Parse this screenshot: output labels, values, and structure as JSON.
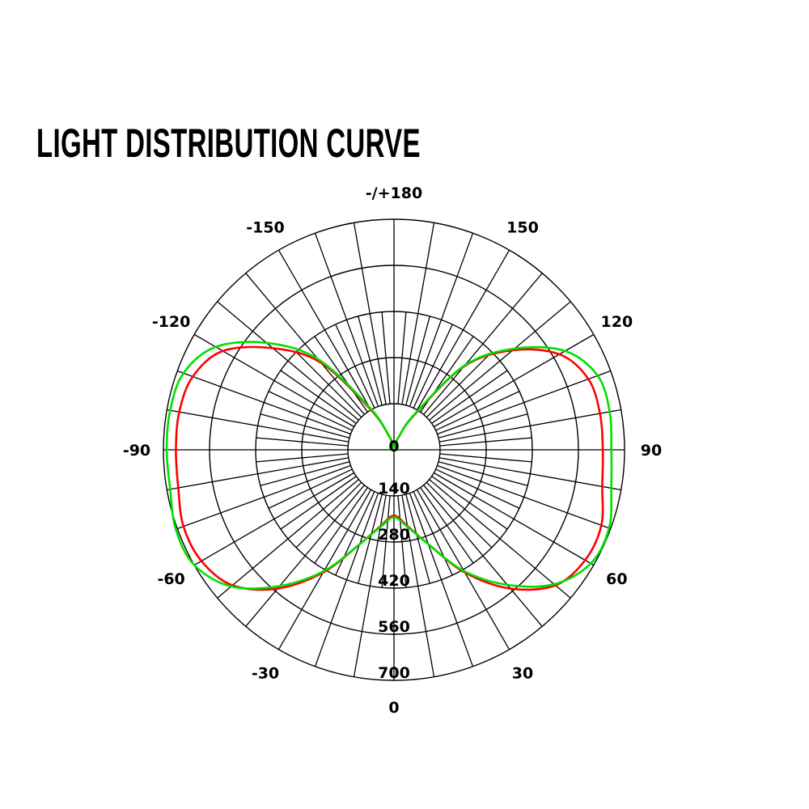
{
  "chart_data": {
    "type": "polar",
    "title": "LIGHT DISTRIBUTION CURVE",
    "angle_zero": "bottom",
    "angle_direction": "positive to the right",
    "angle_labels": [
      "0",
      "30",
      "60",
      "90",
      "120",
      "150",
      "-/+180",
      "-150",
      "-120",
      "-90",
      "-60",
      "-30"
    ],
    "angle_label_values": [
      0,
      30,
      60,
      90,
      120,
      150,
      180,
      -150,
      -120,
      -90,
      -60,
      -30
    ],
    "radial_labels": [
      "0",
      "140",
      "280",
      "420",
      "560",
      "700"
    ],
    "radial_ticks": [
      0,
      140,
      280,
      420,
      560,
      700
    ],
    "rlim": [
      0,
      700
    ],
    "grid": true,
    "colors": {
      "series1": "#ff0000",
      "series2": "#00e000",
      "grid": "#000000"
    },
    "angles": [
      -180,
      -170,
      -160,
      -150,
      -140,
      -130,
      -120,
      -110,
      -100,
      -90,
      -80,
      -70,
      -60,
      -50,
      -40,
      -30,
      -20,
      -10,
      0,
      10,
      20,
      30,
      40,
      50,
      60,
      70,
      80,
      90,
      100,
      110,
      120,
      130,
      140,
      150,
      160,
      170,
      180
    ],
    "series": [
      {
        "color": "#ff0000",
        "values": [
          0,
          10,
          45,
          140,
          345,
          480,
          600,
          650,
          662,
          662,
          665,
          680,
          675,
          640,
          550,
          430,
          305,
          235,
          200,
          235,
          305,
          430,
          550,
          640,
          670,
          670,
          642,
          634,
          635,
          628,
          580,
          470,
          330,
          120,
          40,
          10,
          0
        ]
      },
      {
        "color": "#00e000",
        "values": [
          0,
          10,
          48,
          150,
          360,
          505,
          625,
          680,
          690,
          690,
          690,
          705,
          700,
          645,
          540,
          425,
          305,
          238,
          205,
          238,
          305,
          425,
          535,
          635,
          690,
          695,
          670,
          660,
          665,
          658,
          600,
          478,
          335,
          125,
          42,
          10,
          0
        ]
      }
    ]
  }
}
